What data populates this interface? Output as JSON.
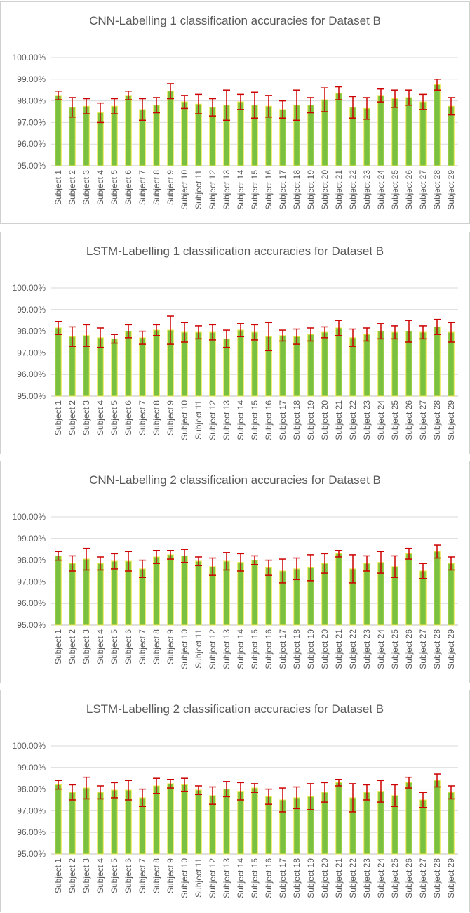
{
  "chart_data": [
    {
      "type": "bar",
      "title": "CNN-Labelling 1 classification accuracies for Dataset B",
      "xlabel": "",
      "ylabel": "",
      "ylim": [
        95,
        100
      ],
      "yticks": [
        95,
        96,
        97,
        98,
        99,
        100
      ],
      "ytick_labels": [
        "95.00%",
        "96.00%",
        "97.00%",
        "98.00%",
        "99.00%",
        "100.00%"
      ],
      "categories": [
        "Subject 1",
        "Subject 2",
        "Subject 3",
        "Subject 4",
        "Subject 5",
        "Subject 6",
        "Subject 7",
        "Subject 8",
        "Subject 9",
        "Subject 10",
        "Subject 11",
        "Subject 12",
        "Subject 13",
        "Subject 14",
        "Subject 15",
        "Subject 16",
        "Subject 17",
        "Subject 18",
        "Subject 19",
        "Subject 20",
        "Subject 21",
        "Subject 22",
        "Subject 23",
        "Subject 24",
        "Subject 25",
        "Subject 26",
        "Subject 27",
        "Subject 28",
        "Subject 29"
      ],
      "values": [
        98.25,
        97.7,
        97.75,
        97.45,
        97.75,
        98.25,
        97.6,
        97.8,
        98.45,
        97.95,
        97.85,
        97.7,
        97.8,
        97.95,
        97.8,
        97.75,
        97.6,
        97.8,
        97.8,
        98.05,
        98.35,
        97.7,
        97.65,
        98.25,
        98.1,
        98.15,
        97.95,
        98.75,
        97.75
      ],
      "errors": [
        0.2,
        0.45,
        0.35,
        0.45,
        0.35,
        0.2,
        0.5,
        0.35,
        0.35,
        0.3,
        0.45,
        0.4,
        0.7,
        0.35,
        0.6,
        0.5,
        0.4,
        0.7,
        0.35,
        0.55,
        0.3,
        0.5,
        0.5,
        0.3,
        0.4,
        0.35,
        0.35,
        0.25,
        0.4
      ],
      "bar_color": "#7ac142",
      "error_color": "#cc0000"
    },
    {
      "type": "bar",
      "title": "LSTM-Labelling 1 classification accuracies for Dataset B",
      "xlabel": "",
      "ylabel": "",
      "ylim": [
        95,
        100
      ],
      "yticks": [
        95,
        96,
        97,
        98,
        99,
        100
      ],
      "ytick_labels": [
        "95.00%",
        "96.00%",
        "97.00%",
        "98.00%",
        "99.00%",
        "100.00%"
      ],
      "categories": [
        "Subject 1",
        "Subject 2",
        "Subject 3",
        "Subject 4",
        "Subject 5",
        "Subject 6",
        "Subject 7",
        "Subject 8",
        "Subject 9",
        "Subject 10",
        "Subject 11",
        "Subject 12",
        "Subject 13",
        "Subject 14",
        "Subject 15",
        "Subject 16",
        "Subject 17",
        "Subject 18",
        "Subject 19",
        "Subject 20",
        "Subject 21",
        "Subject 22",
        "Subject 23",
        "Subject 24",
        "Subject 25",
        "Subject 26",
        "Subject 27",
        "Subject 28",
        "Subject 29"
      ],
      "values": [
        98.15,
        97.75,
        97.8,
        97.7,
        97.65,
        98.0,
        97.7,
        98.05,
        98.05,
        97.95,
        97.95,
        97.95,
        97.65,
        98.05,
        97.95,
        97.75,
        97.8,
        97.75,
        97.85,
        97.95,
        98.15,
        97.7,
        97.85,
        98.0,
        97.95,
        98.0,
        97.95,
        98.2,
        97.95
      ],
      "errors": [
        0.3,
        0.45,
        0.5,
        0.45,
        0.2,
        0.3,
        0.3,
        0.25,
        0.65,
        0.45,
        0.3,
        0.35,
        0.4,
        0.3,
        0.35,
        0.65,
        0.25,
        0.35,
        0.3,
        0.25,
        0.35,
        0.4,
        0.3,
        0.35,
        0.3,
        0.5,
        0.3,
        0.35,
        0.45
      ],
      "bar_color": "#7ac142",
      "error_color": "#cc0000"
    },
    {
      "type": "bar",
      "title": "CNN-Labelling 2 classification accuracies for Dataset B",
      "xlabel": "",
      "ylabel": "",
      "ylim": [
        95,
        100
      ],
      "yticks": [
        95,
        96,
        97,
        98,
        99,
        100
      ],
      "ytick_labels": [
        "95.00%",
        "96.00%",
        "97.00%",
        "98.00%",
        "99.00%",
        "100.00%"
      ],
      "categories": [
        "Subject 1",
        "Subject 2",
        "Subject 3",
        "Subject 4",
        "Subject 5",
        "Subject 6",
        "Subject 7",
        "Subject 8",
        "Subject 9",
        "Subject 10",
        "Subject 11",
        "Subject 12",
        "Subject 13",
        "Subject 14",
        "Subject 15",
        "Subject 16",
        "Subject 17",
        "Subject 18",
        "Subject 19",
        "Subject 20",
        "Subject 21",
        "Subject 22",
        "Subject 23",
        "Subject 24",
        "Subject 25",
        "Subject 26",
        "Subject 27",
        "Subject 28",
        "Subject 29"
      ],
      "values": [
        98.2,
        97.85,
        98.05,
        97.85,
        97.95,
        97.95,
        97.6,
        98.15,
        98.25,
        98.2,
        97.95,
        97.7,
        97.95,
        97.9,
        98.0,
        97.65,
        97.5,
        97.6,
        97.65,
        97.85,
        98.3,
        97.6,
        97.85,
        97.9,
        97.7,
        98.3,
        97.5,
        98.4,
        97.85
      ],
      "errors": [
        0.2,
        0.35,
        0.5,
        0.3,
        0.35,
        0.45,
        0.4,
        0.3,
        0.2,
        0.3,
        0.2,
        0.4,
        0.4,
        0.4,
        0.2,
        0.35,
        0.55,
        0.5,
        0.6,
        0.45,
        0.15,
        0.65,
        0.35,
        0.5,
        0.5,
        0.25,
        0.35,
        0.3,
        0.3
      ],
      "bar_color": "#7ac142",
      "error_color": "#cc0000"
    },
    {
      "type": "bar",
      "title": "LSTM-Labelling 2 classification accuracies for Dataset B",
      "xlabel": "",
      "ylabel": "",
      "ylim": [
        95,
        100
      ],
      "yticks": [
        95,
        96,
        97,
        98,
        99,
        100
      ],
      "ytick_labels": [
        "95.00%",
        "96.00%",
        "97.00%",
        "98.00%",
        "99.00%",
        "100.00%"
      ],
      "categories": [
        "Subject 1",
        "Subject 2",
        "Subject 3",
        "Subject 4",
        "Subject 5",
        "Subject 6",
        "Subject 7",
        "Subject 8",
        "Subject 9",
        "Subject 10",
        "Subject 11",
        "Subject 12",
        "Subject 13",
        "Subject 14",
        "Subject 15",
        "Subject 16",
        "Subject 17",
        "Subject 18",
        "Subject 19",
        "Subject 20",
        "Subject 21",
        "Subject 22",
        "Subject 23",
        "Subject 24",
        "Subject 25",
        "Subject 26",
        "Subject 27",
        "Subject 28",
        "Subject 29"
      ],
      "values": [
        98.2,
        97.85,
        98.05,
        97.85,
        97.95,
        97.95,
        97.6,
        98.15,
        98.25,
        98.2,
        97.95,
        97.7,
        98.0,
        97.9,
        98.05,
        97.65,
        97.5,
        97.6,
        97.65,
        97.85,
        98.3,
        97.6,
        97.85,
        97.9,
        97.7,
        98.3,
        97.5,
        98.4,
        97.85
      ],
      "errors": [
        0.2,
        0.35,
        0.5,
        0.3,
        0.35,
        0.45,
        0.4,
        0.35,
        0.2,
        0.3,
        0.2,
        0.4,
        0.35,
        0.4,
        0.2,
        0.35,
        0.55,
        0.5,
        0.6,
        0.45,
        0.15,
        0.65,
        0.35,
        0.5,
        0.5,
        0.25,
        0.35,
        0.3,
        0.3
      ],
      "bar_color": "#7ac142",
      "error_color": "#cc0000"
    }
  ]
}
